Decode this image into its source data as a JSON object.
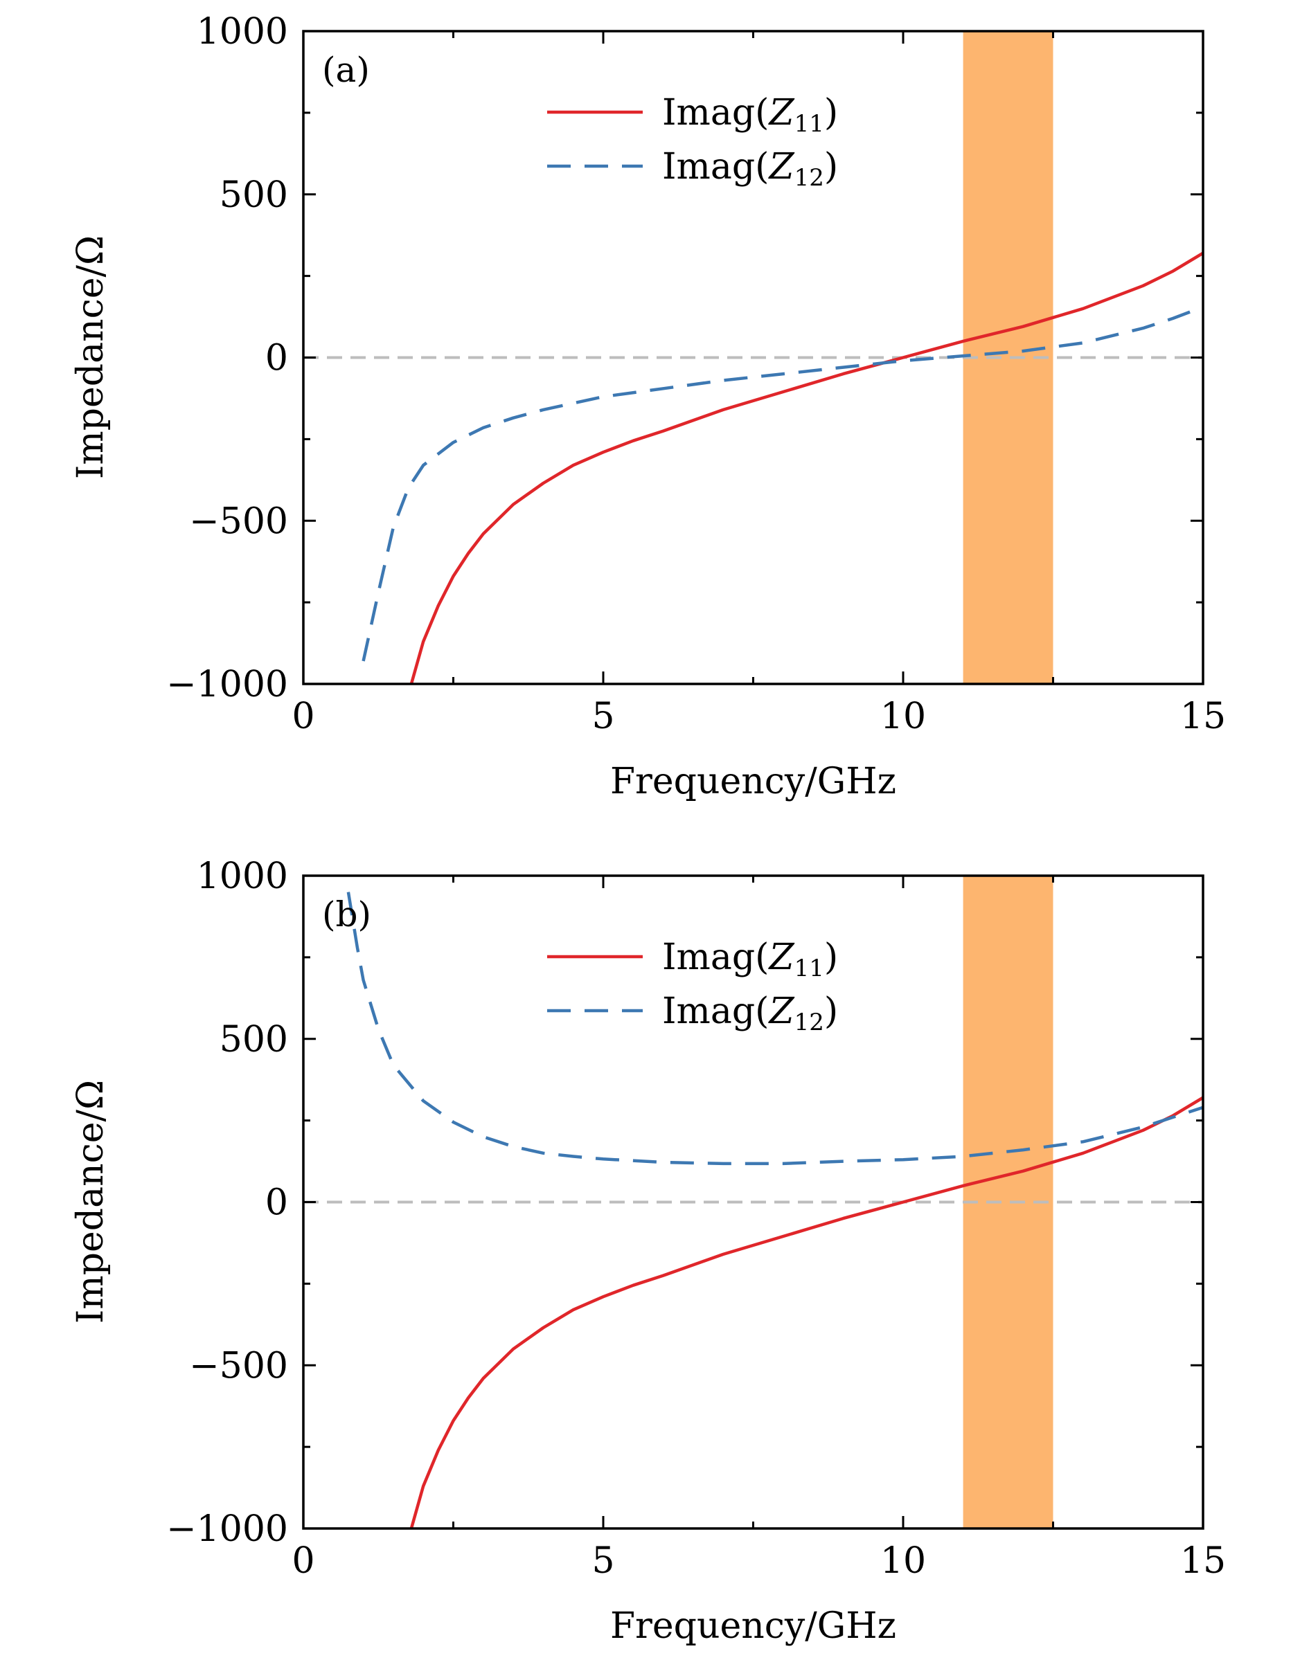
{
  "chart_data": [
    {
      "type": "line",
      "panel_label": "(a)",
      "xlabel": "Frequency/GHz",
      "ylabel": "Impedance/Ω",
      "xlim": [
        0,
        15
      ],
      "ylim": [
        -1000,
        1000
      ],
      "x_ticks": [
        "0",
        "5",
        "10",
        "15"
      ],
      "y_ticks": [
        "−1000",
        "−500",
        "0",
        "500",
        "1000"
      ],
      "highlight_band": {
        "x_start": 11.0,
        "x_end": 12.5,
        "color": "#fdb56f"
      },
      "reference_line": {
        "y": 0,
        "color": "#bdbdbd",
        "style": "dashed"
      },
      "legend": {
        "position": "top-center"
      },
      "series": [
        {
          "name": "Imag(Z11)",
          "sub": "11",
          "color": "#e0262a",
          "style": "solid",
          "x": [
            1.8,
            2.0,
            2.25,
            2.5,
            2.75,
            3.0,
            3.5,
            4.0,
            4.5,
            5.0,
            5.5,
            6.0,
            7.0,
            8.0,
            9.0,
            10.0,
            11.0,
            12.0,
            13.0,
            13.5,
            14.0,
            14.5,
            15.0
          ],
          "y": [
            -1000,
            -870,
            -760,
            -670,
            -600,
            -540,
            -450,
            -385,
            -330,
            -290,
            -255,
            -225,
            -160,
            -105,
            -50,
            0,
            50,
            95,
            150,
            185,
            220,
            265,
            320
          ]
        },
        {
          "name": "Imag(Z12)",
          "sub": "12",
          "color": "#3d78b2",
          "style": "dashed",
          "x": [
            1.0,
            1.25,
            1.5,
            1.75,
            2.0,
            2.5,
            3.0,
            3.5,
            4.0,
            5.0,
            6.0,
            7.0,
            8.0,
            9.0,
            10.0,
            11.0,
            12.0,
            13.0,
            14.0,
            14.5,
            15.0
          ],
          "y": [
            -930,
            -720,
            -520,
            -400,
            -330,
            -260,
            -215,
            -185,
            -160,
            -120,
            -95,
            -70,
            -50,
            -30,
            -10,
            5,
            20,
            45,
            90,
            120,
            155
          ]
        }
      ]
    },
    {
      "type": "line",
      "panel_label": "(b)",
      "xlabel": "Frequency/GHz",
      "ylabel": "Impedance/Ω",
      "xlim": [
        0,
        15
      ],
      "ylim": [
        -1000,
        1000
      ],
      "x_ticks": [
        "0",
        "5",
        "10",
        "15"
      ],
      "y_ticks": [
        "−1000",
        "−500",
        "0",
        "500",
        "1000"
      ],
      "highlight_band": {
        "x_start": 11.0,
        "x_end": 12.5,
        "color": "#fdb56f"
      },
      "reference_line": {
        "y": 0,
        "color": "#bdbdbd",
        "style": "dashed"
      },
      "legend": {
        "position": "top-center"
      },
      "series": [
        {
          "name": "Imag(Z11)",
          "sub": "11",
          "color": "#e0262a",
          "style": "solid",
          "x": [
            1.8,
            2.0,
            2.25,
            2.5,
            2.75,
            3.0,
            3.5,
            4.0,
            4.5,
            5.0,
            5.5,
            6.0,
            7.0,
            8.0,
            9.0,
            10.0,
            11.0,
            12.0,
            13.0,
            13.5,
            14.0,
            14.5,
            15.0
          ],
          "y": [
            -1000,
            -870,
            -760,
            -670,
            -600,
            -540,
            -450,
            -385,
            -330,
            -290,
            -255,
            -225,
            -160,
            -105,
            -50,
            0,
            50,
            95,
            150,
            185,
            220,
            265,
            320
          ]
        },
        {
          "name": "Imag(Z12)",
          "sub": "12",
          "color": "#3d78b2",
          "style": "dashed",
          "x": [
            0.75,
            0.9,
            1.0,
            1.25,
            1.5,
            2.0,
            2.5,
            3.0,
            3.5,
            4.0,
            4.5,
            5.0,
            6.0,
            7.0,
            8.0,
            9.0,
            10.0,
            11.0,
            12.0,
            13.0,
            14.0,
            14.5,
            15.0
          ],
          "y": [
            950,
            780,
            680,
            530,
            420,
            310,
            245,
            200,
            170,
            150,
            140,
            132,
            122,
            118,
            118,
            125,
            130,
            140,
            160,
            185,
            230,
            260,
            290
          ]
        }
      ]
    }
  ]
}
